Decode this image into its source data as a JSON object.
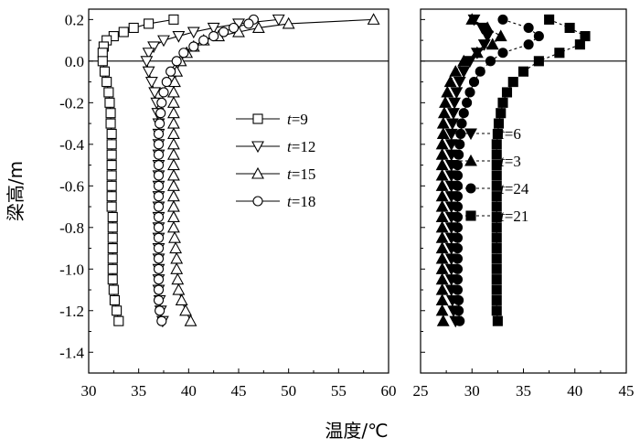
{
  "chart_data": {
    "type": "line",
    "ylabel": "梁高/m",
    "xlabel": "温度/℃",
    "ylim": [
      -1.5,
      0.25
    ],
    "yticks": [
      "0.2",
      "0.0",
      "-0.2",
      "-0.4",
      "-0.6",
      "-0.8",
      "-1.0",
      "-1.2",
      "-1.4"
    ],
    "yvalues": [
      0.2,
      0.0,
      -0.2,
      -0.4,
      -0.6,
      -0.8,
      -1.0,
      -1.2,
      -1.4
    ],
    "panels": [
      {
        "xlim": [
          30,
          60
        ],
        "xticks": [
          "30",
          "35",
          "40",
          "45",
          "50",
          "55",
          "60"
        ],
        "legend_position": "center-right",
        "series": [
          {
            "name": "t=9",
            "marker": "square-open",
            "x": [
              38.5,
              36.0,
              34.5,
              33.5,
              32.5,
              31.8,
              31.5,
              31.4,
              31.4,
              31.6,
              31.8,
              32.0,
              32.1,
              32.2,
              32.2,
              32.3,
              32.3,
              32.3,
              32.3,
              32.3,
              32.3,
              32.3,
              32.3,
              32.4,
              32.4,
              32.4,
              32.4,
              32.4,
              32.4,
              32.4,
              32.5,
              32.6,
              32.8,
              33.0
            ],
            "y": [
              0.2,
              0.18,
              0.16,
              0.14,
              0.12,
              0.1,
              0.07,
              0.04,
              0.0,
              -0.05,
              -0.1,
              -0.15,
              -0.2,
              -0.25,
              -0.3,
              -0.35,
              -0.4,
              -0.45,
              -0.5,
              -0.55,
              -0.6,
              -0.65,
              -0.7,
              -0.75,
              -0.8,
              -0.85,
              -0.9,
              -0.95,
              -1.0,
              -1.05,
              -1.1,
              -1.15,
              -1.2,
              -1.25
            ]
          },
          {
            "name": "t=12",
            "marker": "triangle-down-open",
            "x": [
              49.0,
              45.0,
              42.5,
              40.5,
              39.0,
              37.5,
              36.5,
              36.0,
              35.8,
              36.0,
              36.3,
              36.6,
              36.8,
              36.9,
              37.0,
              37.0,
              37.0,
              37.0,
              37.0,
              37.0,
              37.0,
              37.0,
              37.0,
              37.0,
              37.0,
              37.0,
              37.0,
              37.0,
              37.0,
              37.0,
              37.0,
              37.1,
              37.2,
              37.4
            ],
            "y": [
              0.2,
              0.18,
              0.16,
              0.14,
              0.12,
              0.1,
              0.07,
              0.04,
              0.0,
              -0.05,
              -0.1,
              -0.15,
              -0.2,
              -0.25,
              -0.3,
              -0.35,
              -0.4,
              -0.45,
              -0.5,
              -0.55,
              -0.6,
              -0.65,
              -0.7,
              -0.75,
              -0.8,
              -0.85,
              -0.9,
              -0.95,
              -1.0,
              -1.05,
              -1.1,
              -1.15,
              -1.2,
              -1.25
            ]
          },
          {
            "name": "t=15",
            "marker": "triangle-up-open",
            "x": [
              58.5,
              50.0,
              47.0,
              45.0,
              43.0,
              41.5,
              40.5,
              39.8,
              39.2,
              38.8,
              38.6,
              38.5,
              38.5,
              38.5,
              38.5,
              38.5,
              38.5,
              38.5,
              38.5,
              38.5,
              38.5,
              38.5,
              38.5,
              38.5,
              38.5,
              38.6,
              38.7,
              38.8,
              38.8,
              38.9,
              39.0,
              39.3,
              39.7,
              40.2
            ],
            "y": [
              0.2,
              0.18,
              0.16,
              0.14,
              0.12,
              0.1,
              0.07,
              0.04,
              0.0,
              -0.05,
              -0.1,
              -0.15,
              -0.2,
              -0.25,
              -0.3,
              -0.35,
              -0.4,
              -0.45,
              -0.5,
              -0.55,
              -0.6,
              -0.65,
              -0.7,
              -0.75,
              -0.8,
              -0.85,
              -0.9,
              -0.95,
              -1.0,
              -1.05,
              -1.1,
              -1.15,
              -1.2,
              -1.25
            ]
          },
          {
            "name": "t=18",
            "marker": "circle-open",
            "x": [
              46.5,
              46.0,
              44.5,
              43.5,
              42.5,
              41.5,
              40.5,
              39.5,
              38.8,
              38.2,
              37.8,
              37.5,
              37.3,
              37.2,
              37.1,
              37.0,
              37.0,
              37.0,
              37.0,
              37.0,
              37.0,
              37.0,
              37.0,
              37.0,
              37.0,
              37.0,
              37.0,
              37.0,
              37.0,
              37.0,
              37.0,
              37.0,
              37.1,
              37.3
            ],
            "y": [
              0.2,
              0.18,
              0.16,
              0.14,
              0.12,
              0.1,
              0.07,
              0.04,
              0.0,
              -0.05,
              -0.1,
              -0.15,
              -0.2,
              -0.25,
              -0.3,
              -0.35,
              -0.4,
              -0.45,
              -0.5,
              -0.55,
              -0.6,
              -0.65,
              -0.7,
              -0.75,
              -0.8,
              -0.85,
              -0.9,
              -0.95,
              -1.0,
              -1.05,
              -1.1,
              -1.15,
              -1.2,
              -1.25
            ]
          }
        ]
      },
      {
        "xlim": [
          25,
          45
        ],
        "xticks": [
          "25",
          "30",
          "35",
          "40",
          "45"
        ],
        "legend_position": "center-right",
        "series": [
          {
            "name": "t=6",
            "marker": "triangle-down-filled",
            "x": [
              30.2,
              31.0,
              31.5,
              31.2,
              30.5,
              29.8,
              29.2,
              28.8,
              28.5,
              28.3,
              28.2,
              28.1,
              28.0,
              28.0,
              28.0,
              28.0,
              28.0,
              28.0,
              28.0,
              28.0,
              28.0,
              28.0,
              28.0,
              28.0,
              28.0,
              28.0,
              28.0,
              28.0,
              28.1,
              28.2,
              28.4
            ],
            "y": [
              0.2,
              0.16,
              0.12,
              0.08,
              0.04,
              0.0,
              -0.05,
              -0.1,
              -0.15,
              -0.2,
              -0.25,
              -0.3,
              -0.35,
              -0.4,
              -0.45,
              -0.5,
              -0.55,
              -0.6,
              -0.65,
              -0.7,
              -0.75,
              -0.8,
              -0.85,
              -0.9,
              -0.95,
              -1.0,
              -1.05,
              -1.1,
              -1.15,
              -1.2,
              -1.25
            ]
          },
          {
            "name": "t=3",
            "marker": "triangle-up-filled",
            "x": [
              30.0,
              31.5,
              32.8,
              32.0,
              30.5,
              29.2,
              28.4,
              27.9,
              27.6,
              27.4,
              27.3,
              27.2,
              27.2,
              27.1,
              27.1,
              27.1,
              27.1,
              27.1,
              27.1,
              27.1,
              27.1,
              27.1,
              27.1,
              27.1,
              27.1,
              27.1,
              27.1,
              27.1,
              27.1,
              27.1,
              27.2
            ],
            "y": [
              0.2,
              0.16,
              0.12,
              0.08,
              0.04,
              0.0,
              -0.05,
              -0.1,
              -0.15,
              -0.2,
              -0.25,
              -0.3,
              -0.35,
              -0.4,
              -0.45,
              -0.5,
              -0.55,
              -0.6,
              -0.65,
              -0.7,
              -0.75,
              -0.8,
              -0.85,
              -0.9,
              -0.95,
              -1.0,
              -1.05,
              -1.1,
              -1.15,
              -1.2,
              -1.25
            ]
          },
          {
            "name": "t=24",
            "marker": "circle-filled",
            "x": [
              33.0,
              35.5,
              36.5,
              35.5,
              33.0,
              31.8,
              30.8,
              30.2,
              29.8,
              29.5,
              29.2,
              29.0,
              28.9,
              28.8,
              28.7,
              28.6,
              28.6,
              28.6,
              28.6,
              28.6,
              28.6,
              28.6,
              28.6,
              28.6,
              28.6,
              28.6,
              28.6,
              28.6,
              28.7,
              28.7,
              28.8
            ],
            "y": [
              0.2,
              0.16,
              0.12,
              0.08,
              0.04,
              0.0,
              -0.05,
              -0.1,
              -0.15,
              -0.2,
              -0.25,
              -0.3,
              -0.35,
              -0.4,
              -0.45,
              -0.5,
              -0.55,
              -0.6,
              -0.65,
              -0.7,
              -0.75,
              -0.8,
              -0.85,
              -0.9,
              -0.95,
              -1.0,
              -1.05,
              -1.1,
              -1.15,
              -1.2,
              -1.25
            ]
          },
          {
            "name": "t=21",
            "marker": "square-filled",
            "x": [
              37.5,
              39.5,
              41.0,
              40.5,
              38.5,
              36.5,
              35.0,
              34.0,
              33.4,
              33.0,
              32.8,
              32.6,
              32.5,
              32.4,
              32.4,
              32.4,
              32.4,
              32.4,
              32.4,
              32.4,
              32.4,
              32.4,
              32.4,
              32.4,
              32.4,
              32.4,
              32.4,
              32.4,
              32.4,
              32.4,
              32.5
            ],
            "y": [
              0.2,
              0.16,
              0.12,
              0.08,
              0.04,
              0.0,
              -0.05,
              -0.1,
              -0.15,
              -0.2,
              -0.25,
              -0.3,
              -0.35,
              -0.4,
              -0.45,
              -0.5,
              -0.55,
              -0.6,
              -0.65,
              -0.7,
              -0.75,
              -0.8,
              -0.85,
              -0.9,
              -0.95,
              -1.0,
              -1.05,
              -1.1,
              -1.15,
              -1.2,
              -1.25
            ]
          }
        ]
      }
    ]
  },
  "legend_labels": [
    [
      "t",
      "=9"
    ],
    [
      "t",
      "=12"
    ],
    [
      "t",
      "=15"
    ],
    [
      "t",
      "=18"
    ],
    [
      "t",
      "=6"
    ],
    [
      "t",
      "=3"
    ],
    [
      "t",
      "=24"
    ],
    [
      "t",
      "=21"
    ]
  ]
}
